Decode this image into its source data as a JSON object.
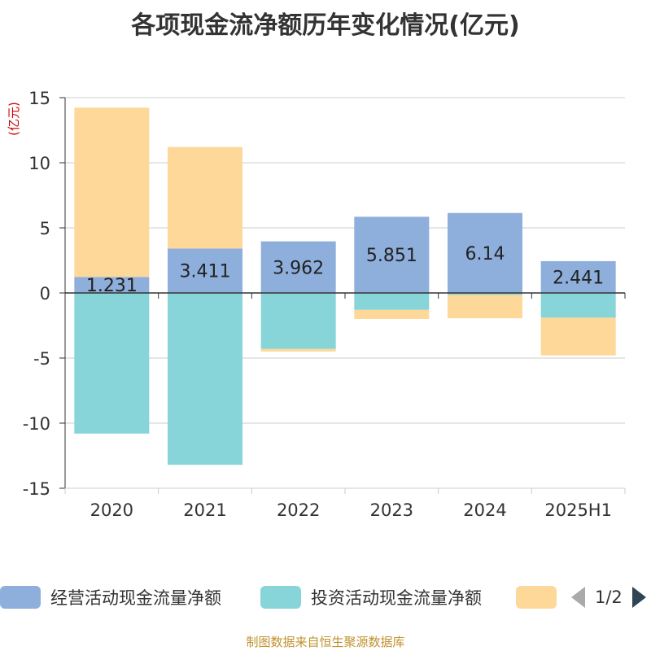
{
  "title": "各项现金流净额历年变化情况(亿元)",
  "source": "制图数据来自恒生聚源数据库",
  "legend": {
    "items": [
      {
        "label": "经营活动现金流量净额",
        "color": "#8eaedb"
      },
      {
        "label": "投资活动现金流量净额",
        "color": "#87d5d8"
      },
      {
        "label": "",
        "color": "#fdd899"
      }
    ],
    "page_text": "1/2"
  },
  "chart_data": {
    "type": "bar",
    "stacked": true,
    "ylabel": "(亿元)",
    "ylim": [
      -15,
      15
    ],
    "yticks": [
      15,
      10,
      5,
      0,
      -5,
      -10,
      -15
    ],
    "categories": [
      "2020",
      "2021",
      "2022",
      "2023",
      "2024",
      "2025H1"
    ],
    "series": [
      {
        "name": "经营活动现金流量净额",
        "color": "#8eaedb",
        "values": [
          1.231,
          3.411,
          3.962,
          5.851,
          6.14,
          2.441
        ],
        "labels": [
          "1.231",
          "3.411",
          "3.962",
          "5.851",
          "6.14",
          "2.441"
        ]
      },
      {
        "name": "投资活动现金流量净额",
        "color": "#87d5d8",
        "values": [
          -10.8,
          -13.2,
          -4.3,
          -1.3,
          -0.15,
          -1.9
        ]
      },
      {
        "name": "",
        "color": "#fdd899",
        "values": [
          13.0,
          7.8,
          -0.2,
          -0.7,
          -1.8,
          -2.9
        ]
      }
    ],
    "grid": true
  }
}
